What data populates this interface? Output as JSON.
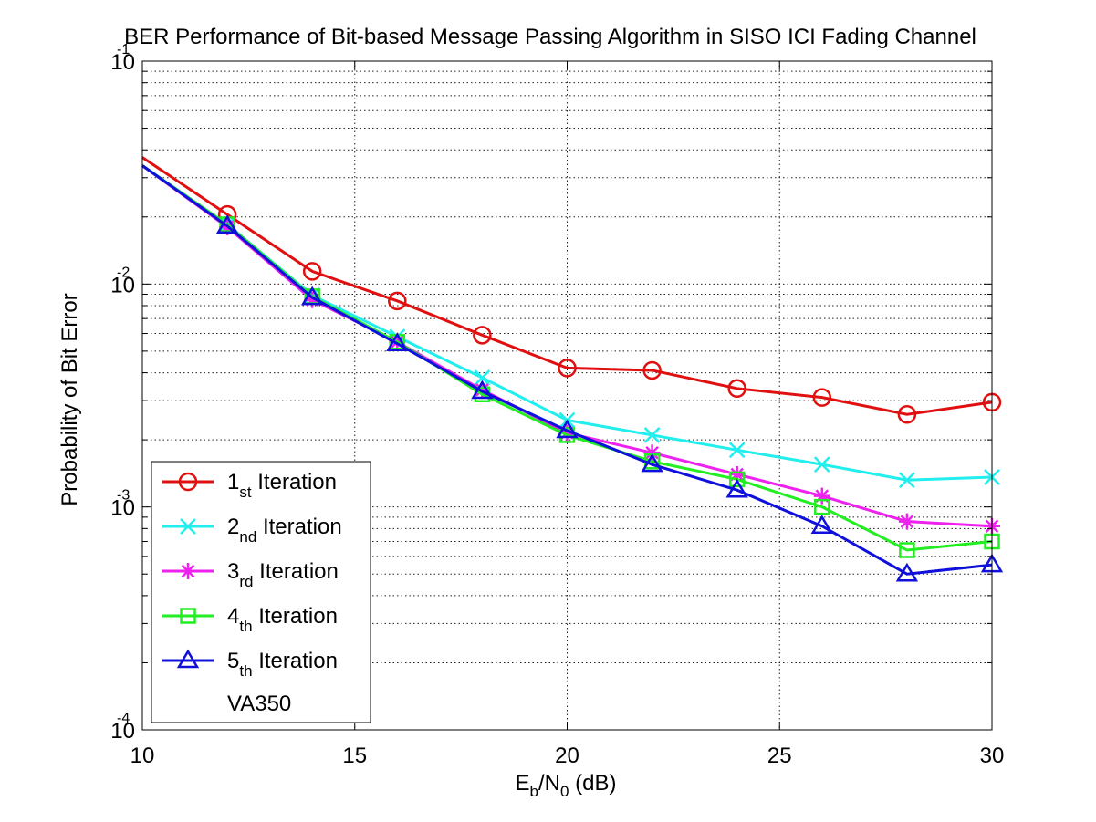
{
  "chart_data": {
    "type": "line",
    "title": "BER Performance of Bit-based Message Passing Algorithm in SISO ICI Fading Channel",
    "xlabel": {
      "main1": "E",
      "sub1": "b",
      "main2": "/N",
      "sub2": "0",
      "tail": " (dB)"
    },
    "ylabel": "Probability of Bit Error",
    "xlim": [
      10,
      30
    ],
    "ylim": [
      0.0001,
      0.1
    ],
    "yscale": "log",
    "grid": true,
    "legend_position": "bottom-left",
    "x_ticks": [
      {
        "value": 10,
        "label": "10"
      },
      {
        "value": 15,
        "label": "15"
      },
      {
        "value": 20,
        "label": "20"
      },
      {
        "value": 25,
        "label": "25"
      },
      {
        "value": 30,
        "label": "30"
      }
    ],
    "y_ticks": [
      {
        "value": 0.1,
        "base": "10",
        "exp": "-1"
      },
      {
        "value": 0.01,
        "base": "10",
        "exp": "-2"
      },
      {
        "value": 0.001,
        "base": "10",
        "exp": "-3"
      },
      {
        "value": 0.0001,
        "base": "10",
        "exp": "-4"
      }
    ],
    "x": [
      10,
      12,
      14,
      16,
      18,
      20,
      22,
      24,
      26,
      28,
      30
    ],
    "series": [
      {
        "name": "1st Iteration",
        "num": "1",
        "suffix": "st",
        "word": " Iteration",
        "color": "#e01010",
        "marker": "circle",
        "values": [
          0.037,
          0.0205,
          0.0114,
          0.0084,
          0.0059,
          0.0042,
          0.0041,
          0.0034,
          0.0031,
          0.0026,
          0.00295
        ]
      },
      {
        "name": "2nd Iteration",
        "num": "2",
        "suffix": "nd",
        "word": " Iteration",
        "color": "#22eeee",
        "marker": "x",
        "values": [
          0.034,
          0.0185,
          0.0089,
          0.0058,
          0.0038,
          0.00245,
          0.0021,
          0.0018,
          0.00155,
          0.00132,
          0.00136
        ]
      },
      {
        "name": "3rd Iteration",
        "num": "3",
        "suffix": "rd",
        "word": " Iteration",
        "color": "#ee22ee",
        "marker": "star",
        "values": [
          0.034,
          0.018,
          0.0085,
          0.0055,
          0.00335,
          0.00215,
          0.00175,
          0.0014,
          0.00112,
          0.00086,
          0.00082
        ]
      },
      {
        "name": "4th Iteration",
        "num": "4",
        "suffix": "th",
        "word": " Iteration",
        "color": "#22ee22",
        "marker": "square",
        "values": [
          0.034,
          0.0185,
          0.0088,
          0.0055,
          0.0032,
          0.0021,
          0.0016,
          0.00133,
          0.001,
          0.00064,
          0.0007
        ]
      },
      {
        "name": "5th Iteration",
        "num": "5",
        "suffix": "th",
        "word": " Iteration",
        "color": "#1010dd",
        "marker": "triangle",
        "values": [
          0.034,
          0.0182,
          0.0087,
          0.0054,
          0.0033,
          0.0022,
          0.00155,
          0.00119,
          0.00082,
          0.0005,
          0.00055
        ]
      }
    ],
    "legend_extra": "VA350"
  }
}
